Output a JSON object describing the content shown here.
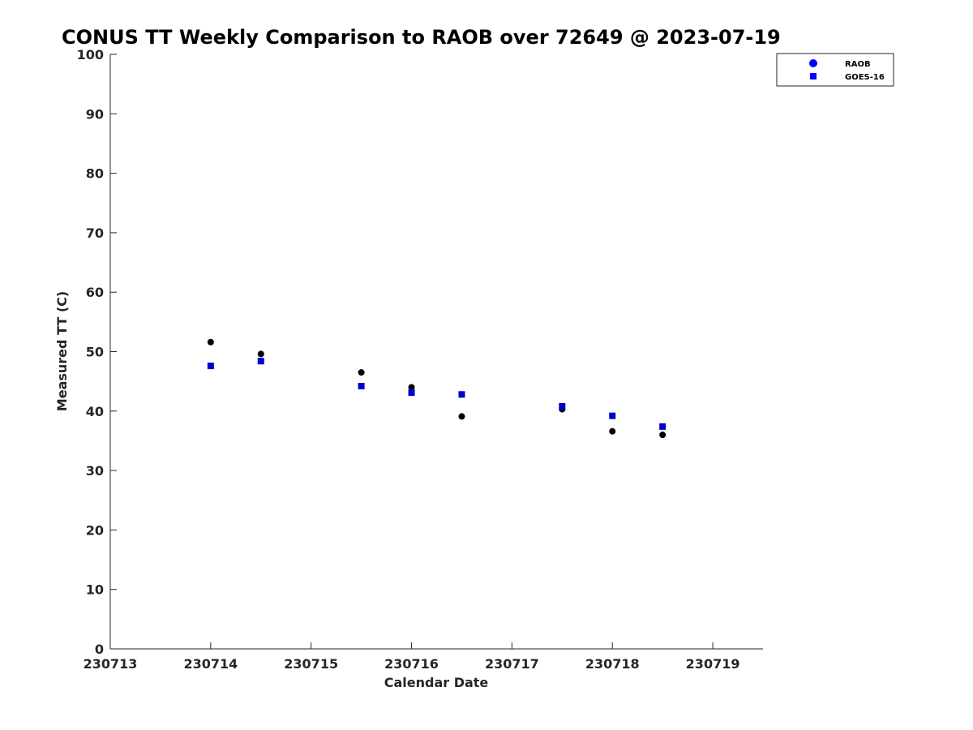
{
  "chart_data": {
    "type": "scatter",
    "title": "CONUS TT Weekly Comparison to RAOB over 72649 @ 2023-07-19",
    "xlabel": "Calendar Date",
    "ylabel": "Measured TT (C)",
    "xlim": [
      230713,
      230719.5
    ],
    "ylim": [
      0,
      100
    ],
    "x_ticks": [
      230713,
      230714,
      230715,
      230716,
      230717,
      230718,
      230719
    ],
    "x_tick_labels": [
      "230713",
      "230714",
      "230715",
      "230716",
      "230717",
      "230718",
      "230719"
    ],
    "y_ticks": [
      0,
      10,
      20,
      30,
      40,
      50,
      60,
      70,
      80,
      90,
      100
    ],
    "y_tick_labels": [
      "0",
      "10",
      "20",
      "30",
      "40",
      "50",
      "60",
      "70",
      "80",
      "90",
      "100"
    ],
    "grid": false,
    "legend_position": "top-right",
    "series": [
      {
        "name": "RAOB",
        "marker": "circle",
        "color": "#000000",
        "legend_color": "#0000ff",
        "points": [
          {
            "x": 230714.0,
            "y": 51.6
          },
          {
            "x": 230714.5,
            "y": 49.6
          },
          {
            "x": 230715.5,
            "y": 46.5
          },
          {
            "x": 230716.0,
            "y": 44.0
          },
          {
            "x": 230716.5,
            "y": 39.1
          },
          {
            "x": 230717.5,
            "y": 40.3
          },
          {
            "x": 230718.0,
            "y": 36.6
          },
          {
            "x": 230718.5,
            "y": 36.0
          }
        ]
      },
      {
        "name": "GOES-16",
        "marker": "square",
        "color": "#0000cc",
        "legend_color": "#0000ff",
        "points": [
          {
            "x": 230714.0,
            "y": 47.6
          },
          {
            "x": 230714.5,
            "y": 48.4
          },
          {
            "x": 230715.5,
            "y": 44.2
          },
          {
            "x": 230716.0,
            "y": 43.1
          },
          {
            "x": 230716.5,
            "y": 42.8
          },
          {
            "x": 230717.5,
            "y": 40.8
          },
          {
            "x": 230718.0,
            "y": 39.2
          },
          {
            "x": 230718.5,
            "y": 37.4
          }
        ]
      }
    ]
  }
}
